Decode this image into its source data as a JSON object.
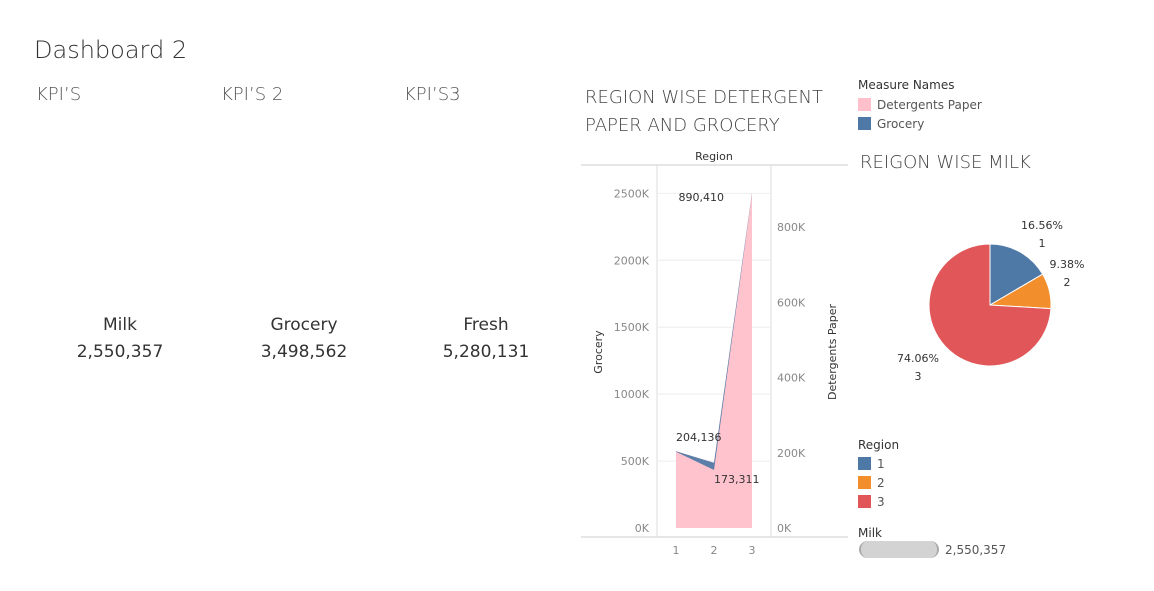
{
  "dashboard_title": "Dashboard 2",
  "kpis": [
    {
      "header": "KPI’S",
      "label": "Milk",
      "value": "2,550,357"
    },
    {
      "header": "KPI’S 2",
      "label": "Grocery",
      "value": "3,498,562"
    },
    {
      "header": "KPI’S3",
      "label": "Fresh",
      "value": "5,280,131"
    }
  ],
  "area_chart_title_line1": "REGION WISE DETERGENT",
  "area_chart_title_line2": "PAPER AND  GROCERY",
  "pie_chart_title": "REIGON WISE MILK",
  "measure_legend": {
    "title": "Measure Names",
    "items": [
      {
        "label": "Detergents Paper",
        "color": "#ffc0cb"
      },
      {
        "label": "Grocery",
        "color": "#4e79a7"
      }
    ]
  },
  "region_legend": {
    "title": "Region",
    "items": [
      {
        "label": "1",
        "color": "#4e79a7"
      },
      {
        "label": "2",
        "color": "#f28e2b"
      },
      {
        "label": "3",
        "color": "#e15759"
      }
    ]
  },
  "milk_size_legend": {
    "title": "Milk",
    "value": "2,550,357"
  },
  "chart_data": [
    {
      "type": "area",
      "title": "REGION WISE DETERGENT PAPER AND  GROCERY",
      "xlabel": "Region",
      "ylabel": "Grocery",
      "y2label": "Detergents Paper",
      "categories": [
        "1",
        "2",
        "3"
      ],
      "series": [
        {
          "name": "Grocery",
          "axis": "left",
          "values": [
            570037,
            433274,
            2495251
          ],
          "color": "#4e79a7"
        },
        {
          "name": "Detergents Paper",
          "axis": "right",
          "values": [
            204136,
            173311,
            890410
          ],
          "color": "#ffc0cb"
        }
      ],
      "ylim": [
        0,
        2600000
      ],
      "y2lim": [
        0,
        925000
      ],
      "yticks": [
        "0K",
        "500K",
        "1000K",
        "1500K",
        "2000K",
        "2500K"
      ],
      "y2ticks": [
        "0K",
        "200K",
        "400K",
        "600K",
        "800K"
      ],
      "data_labels": [
        "204,136",
        "173,311",
        "890,410"
      ]
    },
    {
      "type": "pie",
      "title": "REIGON WISE MILK",
      "slices": [
        {
          "label": "1",
          "percent": 16.56,
          "percent_label": "16.56%",
          "color": "#4e79a7"
        },
        {
          "label": "2",
          "percent": 9.38,
          "percent_label": "9.38%",
          "color": "#f28e2b"
        },
        {
          "label": "3",
          "percent": 74.06,
          "percent_label": "74.06%",
          "color": "#e15759"
        }
      ]
    }
  ]
}
